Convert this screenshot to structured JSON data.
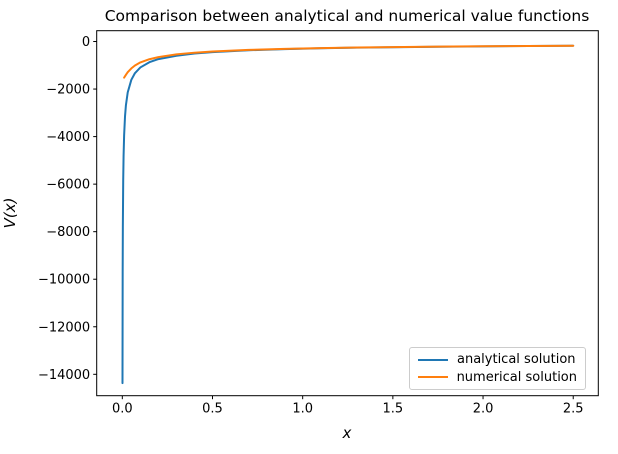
{
  "figure": {
    "title": "Comparison between analytical and numerical value functions",
    "xlabel": "x",
    "ylabel": "V(x)"
  },
  "legend": {
    "entries": [
      {
        "label": "analytical solution",
        "color": "#1f77b4"
      },
      {
        "label": "numerical solution",
        "color": "#ff7f0e"
      }
    ]
  },
  "chart_data": {
    "type": "line",
    "title": "Comparison between analytical and numerical value functions",
    "xlabel": "x",
    "ylabel": "V(x)",
    "xlim": [
      -0.142,
      2.639
    ],
    "ylim": [
      -14900,
      455
    ],
    "xticks": [
      0.0,
      0.5,
      1.0,
      1.5,
      2.0,
      2.5
    ],
    "yticks": [
      0,
      -2000,
      -4000,
      -6000,
      -8000,
      -10000,
      -12000,
      -14000
    ],
    "grid": false,
    "legend_position": "lower right",
    "series": [
      {
        "name": "analytical solution",
        "color": "#1f77b4",
        "x": [
          0.001,
          0.002,
          0.003,
          0.005,
          0.007,
          0.01,
          0.015,
          0.02,
          0.03,
          0.05,
          0.07,
          0.1,
          0.15,
          0.2,
          0.3,
          0.4,
          0.5,
          0.7,
          0.9,
          1.1,
          1.3,
          1.5,
          1.75,
          2.0,
          2.25,
          2.5
        ],
        "values": [
          -14370,
          -9740,
          -7760,
          -5830,
          -4830,
          -3950,
          -3150,
          -2680,
          -2140,
          -1610,
          -1330,
          -1090,
          -870,
          -740,
          -600,
          -505,
          -445,
          -368,
          -318,
          -284,
          -259,
          -239,
          -219,
          -203,
          -191,
          -180
        ]
      },
      {
        "name": "numerical solution",
        "color": "#ff7f0e",
        "x": [
          0.01,
          0.02,
          0.03,
          0.05,
          0.07,
          0.1,
          0.15,
          0.2,
          0.3,
          0.4,
          0.5,
          0.7,
          0.9,
          1.1,
          1.3,
          1.5,
          1.75,
          2.0,
          2.25,
          2.5
        ],
        "values": [
          -1520,
          -1400,
          -1290,
          -1130,
          -1010,
          -880,
          -745,
          -655,
          -540,
          -470,
          -420,
          -352,
          -309,
          -277,
          -254,
          -235,
          -216,
          -201,
          -188,
          -178
        ]
      }
    ]
  }
}
